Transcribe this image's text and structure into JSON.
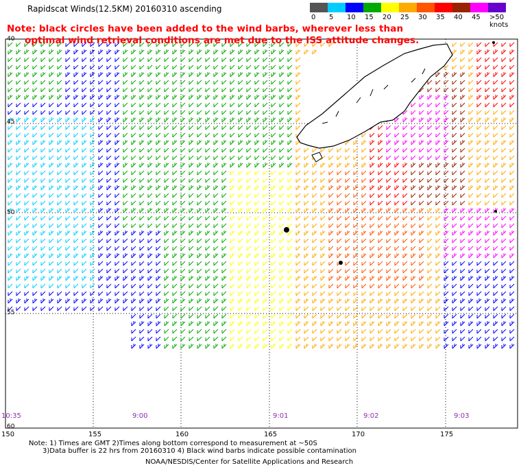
{
  "title": "Rapidscat Winds(12.5KM) 20160310 ascending",
  "note": {
    "line1": "Note: black circles have been added to the wind barbs, wherever less than",
    "line2": "optimal wind retrieval conditions are met due to the ISS attitude changes."
  },
  "legend": {
    "colors": [
      "#555555",
      "#00ccff",
      "#0000ff",
      "#00aa00",
      "#ffff00",
      "#ffaa00",
      "#ff5500",
      "#ff0000",
      "#992200",
      "#ff00ff",
      "#6600cc"
    ],
    "labels": [
      "0",
      "5",
      "10",
      "15",
      "20",
      "25",
      "30",
      "35",
      "40",
      "45",
      ">50 knots"
    ]
  },
  "lat_labels": [
    "40",
    "45",
    "50",
    "55",
    "60"
  ],
  "lon_labels": [
    "150",
    "155",
    "160",
    "165",
    "170",
    "175"
  ],
  "time_labels": [
    "10:35",
    "9:00",
    "9:01",
    "9:02",
    "9:03"
  ],
  "footer": {
    "line1": "Note: 1) Times are GMT 2)Times along bottom correspond to measurement at ~50S",
    "line2": "3)Data buffer is 22 hrs from 20160310 4) Black wind barbs indicate possible contamination",
    "line3": "NOAA/NESDIS/Center for Satellite Applications and Research"
  }
}
